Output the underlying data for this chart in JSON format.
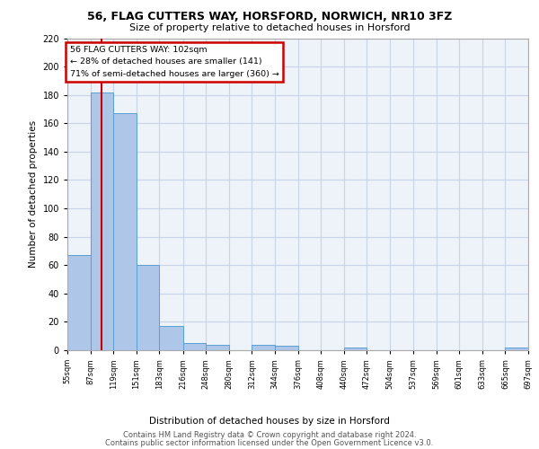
{
  "title1": "56, FLAG CUTTERS WAY, HORSFORD, NORWICH, NR10 3FZ",
  "title2": "Size of property relative to detached houses in Horsford",
  "xlabel": "Distribution of detached houses by size in Horsford",
  "ylabel": "Number of detached properties",
  "footer1": "Contains HM Land Registry data © Crown copyright and database right 2024.",
  "footer2": "Contains public sector information licensed under the Open Government Licence v3.0.",
  "annotation_line1": "56 FLAG CUTTERS WAY: 102sqm",
  "annotation_line2": "← 28% of detached houses are smaller (141)",
  "annotation_line3": "71% of semi-detached houses are larger (360) →",
  "bar_edges": [
    55,
    87,
    119,
    151,
    183,
    216,
    248,
    280,
    312,
    344,
    376,
    408,
    440,
    472,
    504,
    537,
    569,
    601,
    633,
    665,
    697
  ],
  "bar_heights": [
    67,
    182,
    167,
    60,
    17,
    5,
    4,
    0,
    4,
    3,
    0,
    0,
    2,
    0,
    0,
    0,
    0,
    0,
    0,
    2
  ],
  "bar_color": "#aec6e8",
  "bar_edge_color": "#5a9fd4",
  "red_line_x": 102,
  "ylim": [
    0,
    220
  ],
  "yticks": [
    0,
    20,
    40,
    60,
    80,
    100,
    120,
    140,
    160,
    180,
    200,
    220
  ],
  "bg_color": "#eef2f9",
  "grid_color": "#c8d4e8",
  "annotation_box_color": "#ffffff",
  "annotation_box_edge": "#cc0000",
  "red_line_color": "#cc0000"
}
